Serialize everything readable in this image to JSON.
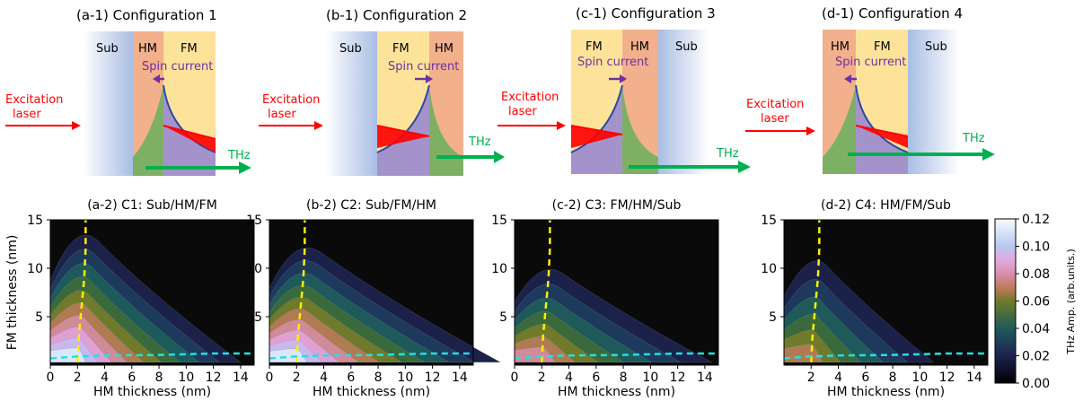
{
  "configs": [
    {
      "title": "(a-1) Configuration 1",
      "layers": [
        "Sub",
        "HM",
        "FM"
      ],
      "spin_label": "Spin current",
      "laser_label": [
        "Excitation",
        "laser"
      ],
      "thz_label": "THz"
    },
    {
      "title": "(b-1) Configuration 2",
      "layers": [
        "Sub",
        "FM",
        "HM"
      ],
      "spin_label": "Spin current",
      "laser_label": [
        "Excitation",
        "laser"
      ],
      "thz_label": "THz"
    },
    {
      "title": "(c-1) Configuration 3",
      "layers": [
        "FM",
        "HM",
        "Sub"
      ],
      "spin_label": "Spin current",
      "laser_label": [
        "Excitation",
        "laser"
      ],
      "thz_label": "THz"
    },
    {
      "title": "(d-1) Configuration 4",
      "layers": [
        "HM",
        "FM",
        "Sub"
      ],
      "spin_label": "Spin current",
      "laser_label": [
        "Excitation",
        "laser"
      ],
      "thz_label": "THz"
    }
  ],
  "colors": {
    "sub": "#aabfe3",
    "hm": "#f2b08c",
    "fm": "#fde39a",
    "spin": "#7030a0",
    "laser": "#ff0000",
    "thz": "#00b050",
    "yellow_dash": "#ffee00",
    "cyan_dash": "#22e0e8",
    "background": "#0a0a0a"
  },
  "chart_data": [
    {
      "type": "heatmap",
      "title": "(a-2) C1: Sub/HM/FM",
      "xlabel": "HM thickness (nm)",
      "ylabel": "FM thickness (nm)",
      "xlim": [
        0,
        15
      ],
      "ylim": [
        0,
        15
      ],
      "xticks": [
        "0",
        "2",
        "4",
        "6",
        "8",
        "10",
        "12",
        "14"
      ],
      "yticks": [
        "5",
        "10",
        "15"
      ],
      "peak": 0.12,
      "peak_at": [
        2,
        1
      ],
      "hm_extent": 12,
      "fm_extent": 14
    },
    {
      "type": "heatmap",
      "title": "(b-2) C2: Sub/FM/HM",
      "xlabel": "HM thickness (nm)",
      "ylabel": "FM thickness (nm)",
      "xlim": [
        0,
        15
      ],
      "ylim": [
        0,
        15
      ],
      "xticks": [
        "0",
        "2",
        "4",
        "6",
        "8",
        "10",
        "12",
        "14"
      ],
      "yticks": [
        "5",
        "10",
        "15"
      ],
      "peak": 0.12,
      "peak_at": [
        2,
        1
      ],
      "hm_extent": 15,
      "fm_extent": 12.5
    },
    {
      "type": "heatmap",
      "title": "(c-2) C3: FM/HM/Sub",
      "xlabel": "HM thickness (nm)",
      "ylabel": "FM thickness (nm)",
      "xlim": [
        0,
        15
      ],
      "ylim": [
        0,
        15
      ],
      "xticks": [
        "0",
        "2",
        "4",
        "6",
        "8",
        "10",
        "12",
        "14"
      ],
      "yticks": [
        "5",
        "10",
        "15"
      ],
      "peak": 0.08,
      "peak_at": [
        2,
        1
      ],
      "hm_extent": 12.5,
      "fm_extent": 10
    },
    {
      "type": "heatmap",
      "title": "(d-2) C4: HM/FM/Sub",
      "xlabel": "HM thickness (nm)",
      "ylabel": "FM thickness (nm)",
      "xlim": [
        0,
        15
      ],
      "ylim": [
        0,
        15
      ],
      "xticks": [
        "2",
        "4",
        "6",
        "8",
        "10",
        "12",
        "14"
      ],
      "yticks": [
        "5",
        "10",
        "15"
      ],
      "peak": 0.07,
      "peak_at": [
        2,
        1
      ],
      "hm_extent": 9,
      "fm_extent": 11
    }
  ],
  "colorbar": {
    "label": "THz Amp. (arb.units.)",
    "ticks": [
      "0.00",
      "0.02",
      "0.04",
      "0.06",
      "0.08",
      "0.10",
      "0.12"
    ],
    "range": [
      0,
      0.12
    ]
  }
}
